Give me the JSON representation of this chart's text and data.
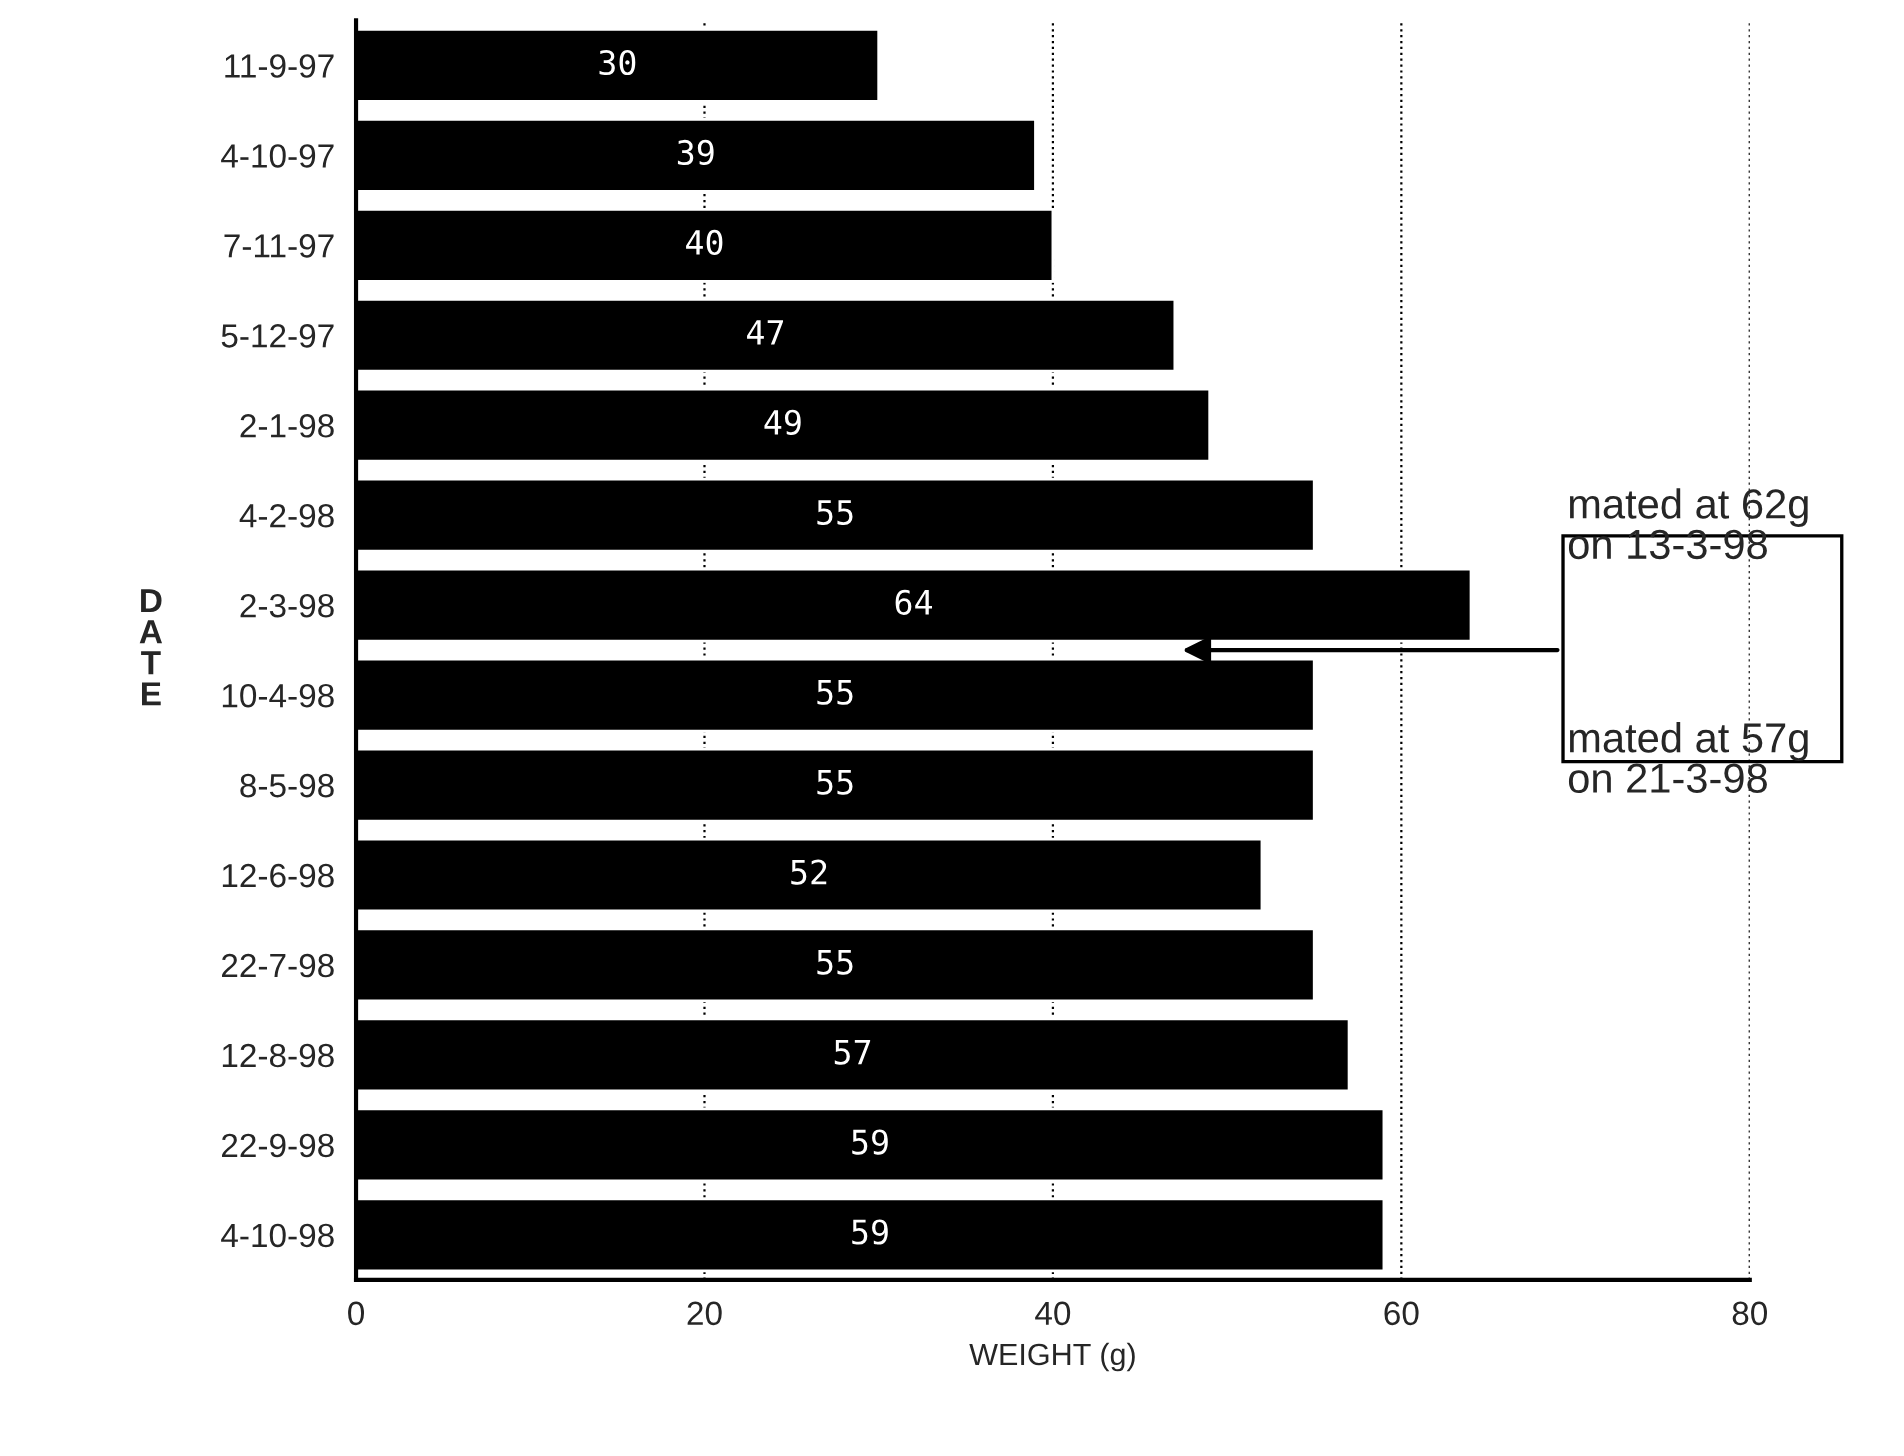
{
  "chart_data": {
    "type": "bar",
    "orientation": "horizontal",
    "xlabel": "WEIGHT (g)",
    "ylabel": "DATE",
    "categories": [
      "11-9-97",
      "4-10-97",
      "7-11-97",
      "5-12-97",
      "2-1-98",
      "4-2-98",
      "2-3-98",
      "10-4-98",
      "8-5-98",
      "12-6-98",
      "22-7-98",
      "12-8-98",
      "22-9-98",
      "4-10-98"
    ],
    "values": [
      30,
      39,
      40,
      47,
      49,
      55,
      64,
      55,
      55,
      52,
      55,
      57,
      59,
      59
    ],
    "color": "#000000",
    "data_labels": true,
    "xlim": [
      0,
      80
    ],
    "xticks": [
      0,
      20,
      40,
      60,
      80
    ],
    "grid": "x",
    "annotations": [
      "mated at 62g\non 13-3-98",
      "mated at 57g\non 21-3-98"
    ]
  }
}
